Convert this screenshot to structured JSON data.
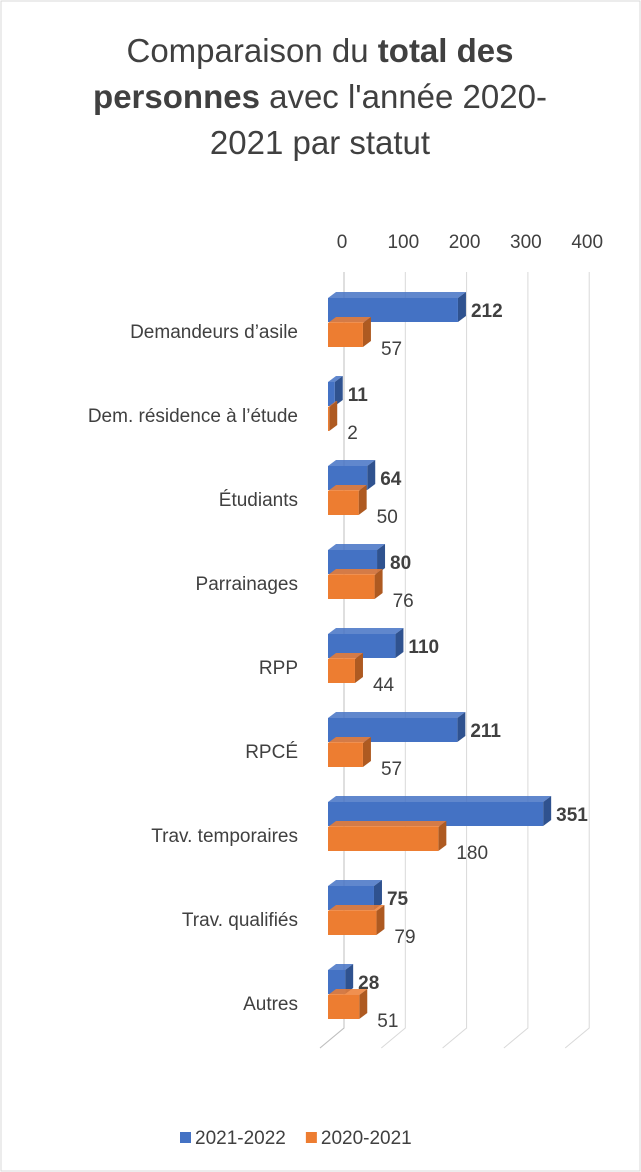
{
  "chart_data": {
    "type": "bar3d_horizontal",
    "title_parts": [
      "Comparaison du ",
      "total des personnes",
      " avec l'année 2020-2021 par statut"
    ],
    "title_bold": [
      false,
      true,
      false
    ],
    "categories": [
      "Demandeurs d’asile",
      "Dem. résidence à l’étude",
      "Étudiants",
      "Parrainages",
      "RPP",
      "RPCÉ",
      "Trav. temporaires",
      "Trav. qualifiés",
      "Autres"
    ],
    "series": [
      {
        "name": "2021-2022",
        "color": "#4472c4",
        "side_color": "#2f528f",
        "label_weight": "bold",
        "values": [
          212,
          11,
          64,
          80,
          110,
          211,
          351,
          75,
          28
        ]
      },
      {
        "name": "2020-2021",
        "color": "#ed7d31",
        "side_color": "#ae5a21",
        "label_weight": "normal",
        "values": [
          57,
          2,
          50,
          76,
          44,
          57,
          180,
          79,
          51
        ]
      }
    ],
    "xlim": [
      0,
      400
    ],
    "xticks": [
      0,
      100,
      200,
      300,
      400
    ],
    "grid": true,
    "legend": "bottom"
  }
}
